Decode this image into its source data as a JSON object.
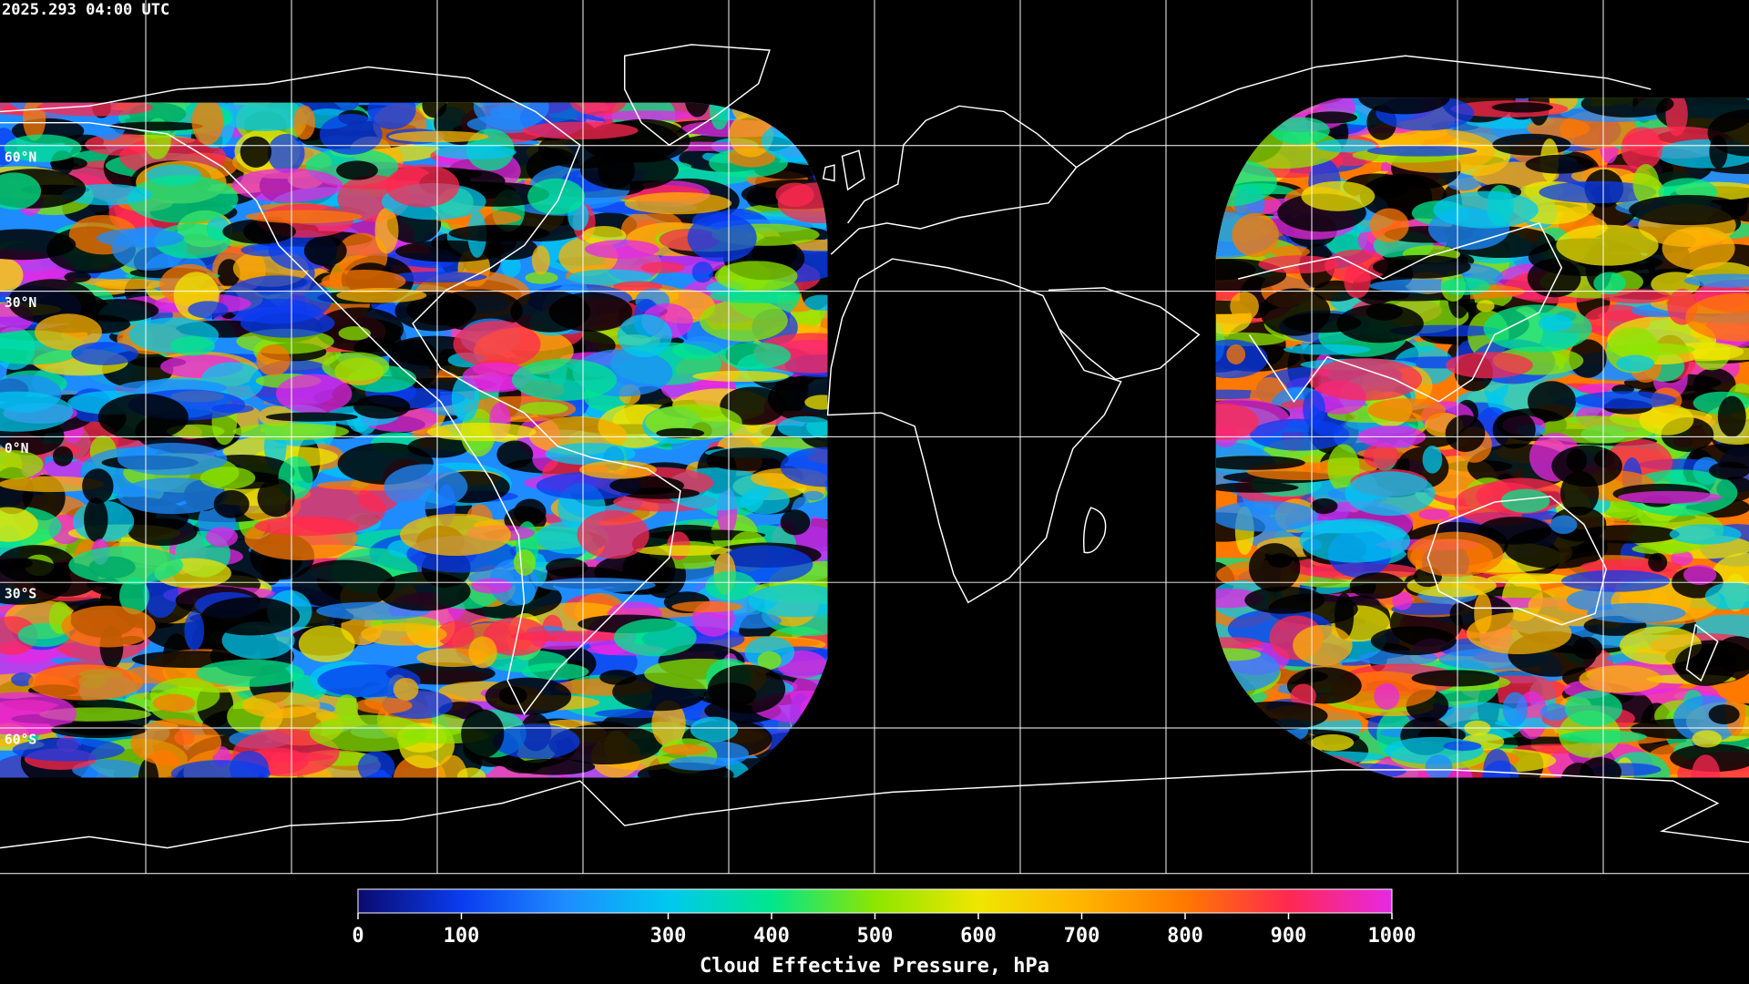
{
  "chart_data": {
    "type": "map",
    "title": "2025.293 04:00 UTC",
    "ylim": [
      -90,
      90
    ],
    "yticks": [
      {
        "value": 60,
        "label": "60°N"
      },
      {
        "value": 30,
        "label": "30°N"
      },
      {
        "value": 0,
        "label": "0°N"
      },
      {
        "value": -30,
        "label": "30°S"
      },
      {
        "value": -60,
        "label": "60°S"
      }
    ],
    "grid": true,
    "colorbar": {
      "label": "Cloud Effective Pressure, hPa",
      "lim": [
        0,
        1000
      ],
      "ticks": [
        0,
        100,
        300,
        400,
        500,
        600,
        700,
        800,
        900,
        1000
      ],
      "colors": [
        "#0a0a6e",
        "#0a3cf0",
        "#1e8cff",
        "#00c8f0",
        "#00e68c",
        "#8ce600",
        "#f0e600",
        "#ffb400",
        "#ff7800",
        "#ff2850",
        "#e628e6"
      ]
    }
  }
}
